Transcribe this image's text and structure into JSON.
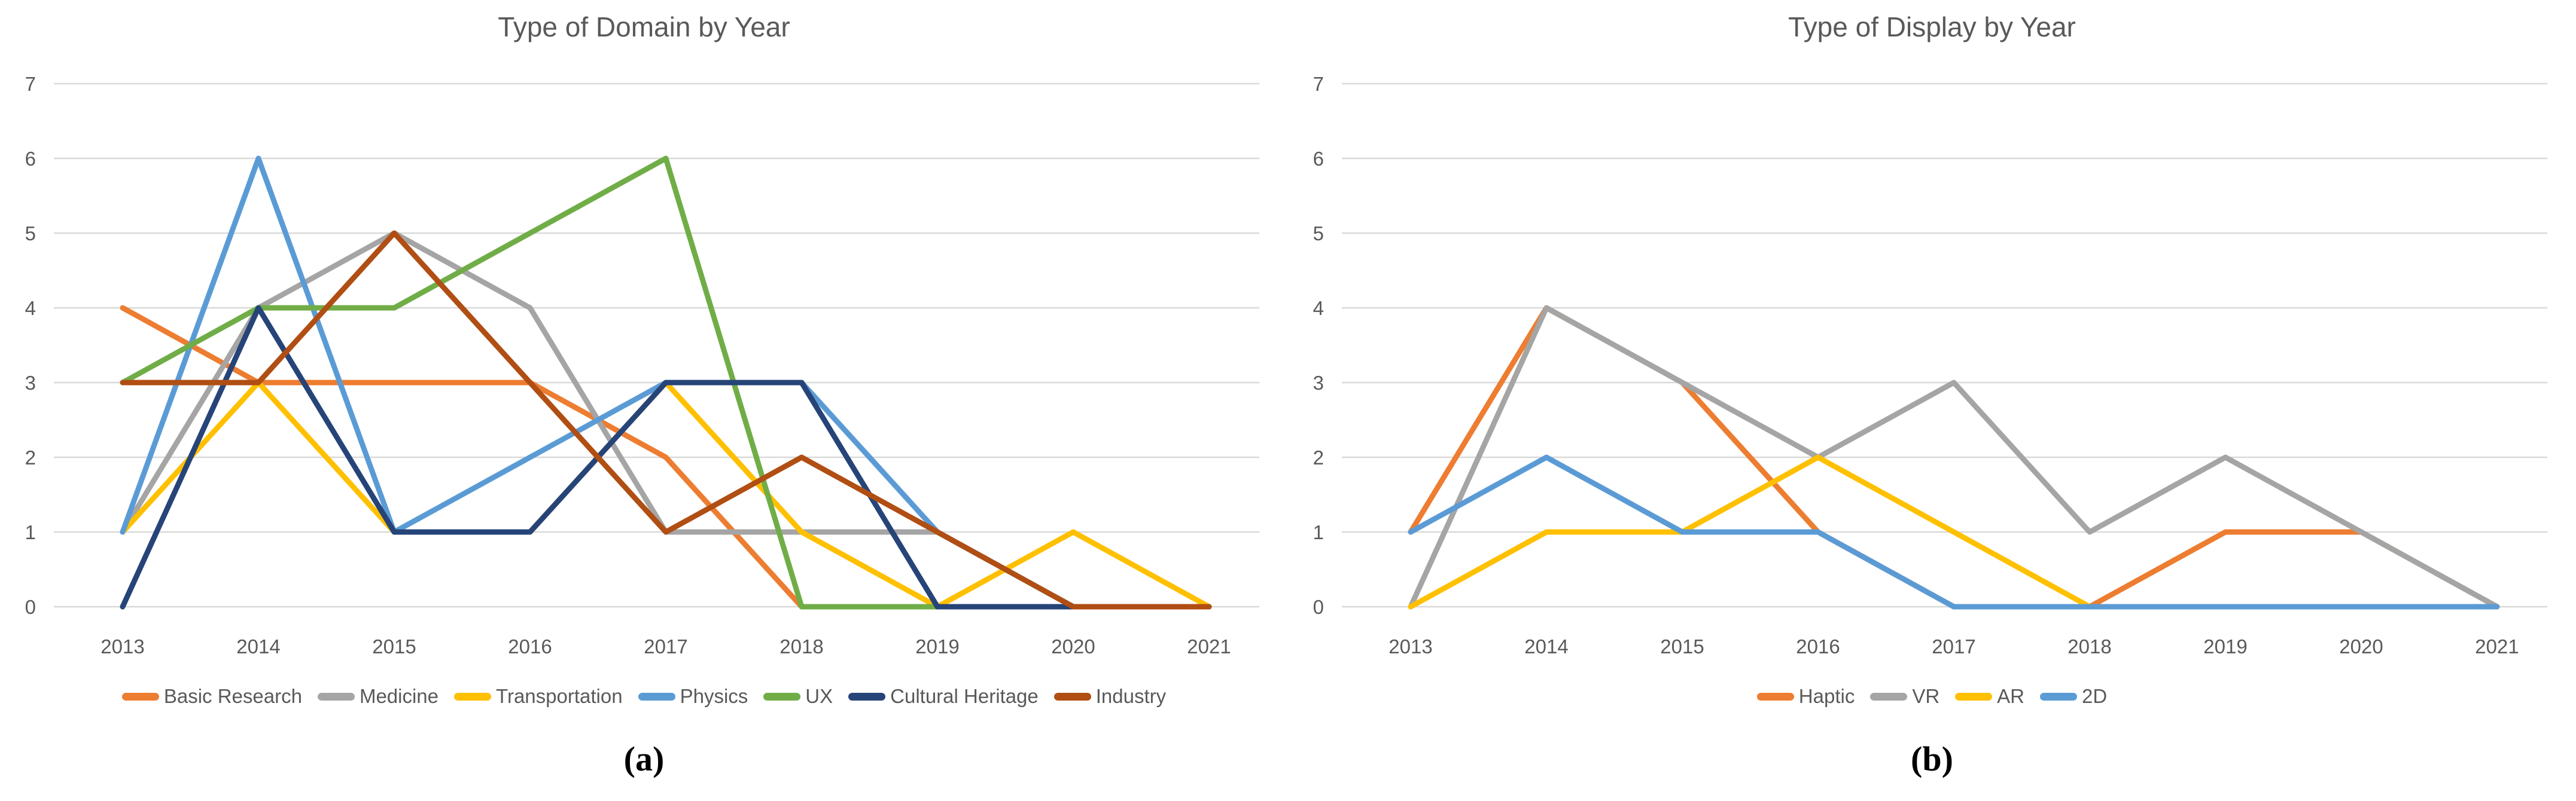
{
  "figure": {
    "background": "#ffffff",
    "title_color": "#595959",
    "axis_label_color": "#595959",
    "gridline_color": "#d9d9d9"
  },
  "chart_data": [
    {
      "type": "line",
      "title": "Type of Domain by Year",
      "caption": "(a)",
      "categories": [
        "2013",
        "2014",
        "2015",
        "2016",
        "2017",
        "2018",
        "2019",
        "2020",
        "2021"
      ],
      "xlabel": "",
      "ylabel": "",
      "ylim": [
        0,
        7
      ],
      "yticks": [
        0,
        1,
        2,
        3,
        4,
        5,
        6,
        7
      ],
      "grid": true,
      "legend_position": "bottom",
      "series": [
        {
          "name": "Basic Research",
          "color": "#ED7D31",
          "values": [
            4,
            3,
            3,
            3,
            2,
            0,
            0,
            0,
            0
          ]
        },
        {
          "name": "Medicine",
          "color": "#A5A5A5",
          "values": [
            1,
            4,
            5,
            4,
            1,
            1,
            1,
            0,
            0
          ]
        },
        {
          "name": "Transportation",
          "color": "#FFC000",
          "values": [
            1,
            3,
            1,
            1,
            3,
            1,
            0,
            1,
            0
          ]
        },
        {
          "name": "Physics",
          "color": "#5B9BD5",
          "values": [
            1,
            6,
            1,
            2,
            3,
            3,
            1,
            0,
            0
          ]
        },
        {
          "name": "UX",
          "color": "#70AD47",
          "values": [
            3,
            4,
            4,
            5,
            6,
            0,
            0,
            0,
            0
          ]
        },
        {
          "name": "Cultural Heritage",
          "color": "#264478",
          "values": [
            0,
            4,
            1,
            1,
            3,
            3,
            0,
            0,
            0
          ]
        },
        {
          "name": "Industry",
          "color": "#B04E13",
          "values": [
            3,
            3,
            5,
            3,
            1,
            2,
            1,
            0,
            0
          ]
        }
      ]
    },
    {
      "type": "line",
      "title": "Type of Display by Year",
      "caption": "(b)",
      "categories": [
        "2013",
        "2014",
        "2015",
        "2016",
        "2017",
        "2018",
        "2019",
        "2020",
        "2021"
      ],
      "xlabel": "",
      "ylabel": "",
      "ylim": [
        0,
        7
      ],
      "yticks": [
        0,
        1,
        2,
        3,
        4,
        5,
        6,
        7
      ],
      "grid": true,
      "legend_position": "bottom",
      "series": [
        {
          "name": "Haptic",
          "color": "#ED7D31",
          "values": [
            1,
            4,
            3,
            1,
            0,
            0,
            1,
            1,
            0
          ]
        },
        {
          "name": "VR",
          "color": "#A5A5A5",
          "values": [
            0,
            4,
            3,
            2,
            3,
            1,
            2,
            1,
            0
          ]
        },
        {
          "name": "AR",
          "color": "#FFC000",
          "values": [
            0,
            1,
            1,
            2,
            1,
            0,
            0,
            0,
            0
          ]
        },
        {
          "name": "2D",
          "color": "#5B9BD5",
          "values": [
            1,
            2,
            1,
            1,
            0,
            0,
            0,
            0,
            0
          ]
        }
      ]
    }
  ]
}
